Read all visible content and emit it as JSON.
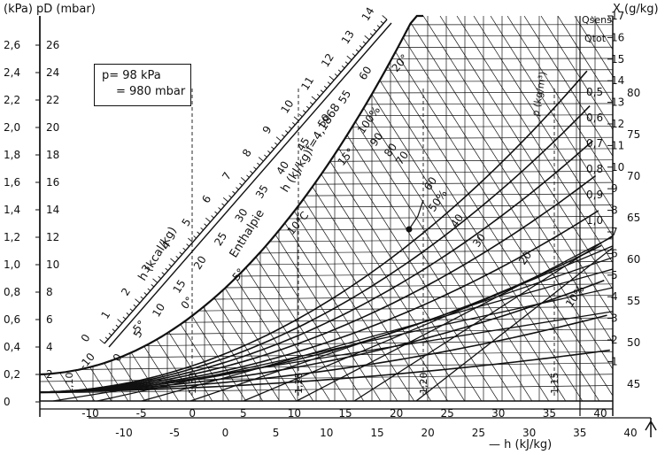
{
  "diagram": {
    "type": "Mollier h-x diagram (psychrometric chart)",
    "pressure_box": {
      "line1": "p=   98 kPa",
      "line2": "= 980 mbar"
    },
    "left_axis_title": "(kPa) pD (mbar)",
    "left_kpa_ticks": [
      "2,6",
      "2,4",
      "2,2",
      "2,0",
      "1,8",
      "1,6",
      "1,4",
      "1,2",
      "1,0",
      "0,8",
      "0,6",
      "0,4",
      "0,2",
      "0"
    ],
    "left_mbar_ticks": [
      "26",
      "24",
      "22",
      "20",
      "18",
      "16",
      "14",
      "12",
      "10",
      "8",
      "6",
      "4",
      "2"
    ],
    "right_axis_title": "X (g/kg)",
    "right_x_ticks": [
      "17",
      "16",
      "15",
      "14",
      "13",
      "12",
      "11",
      "10",
      "9",
      "8",
      "7",
      "6",
      "5",
      "4",
      "3",
      "2",
      "1"
    ],
    "right_enthalpy_ticks": [
      "80",
      "75",
      "70",
      "65",
      "60",
      "55",
      "50",
      "45"
    ],
    "q_labels": {
      "sens": "Qsens",
      "tot": "Qtot"
    },
    "q_ratio_ticks": [
      "0,5",
      "0,6",
      "0,7",
      "0,8",
      "0,9",
      "1,0"
    ],
    "bottom_h_ticks_top": [
      "-10",
      "-5",
      "0",
      "5",
      "10",
      "15",
      "20",
      "25",
      "30",
      "35",
      "40"
    ],
    "bottom_h_ticks_bottom": [
      "-10",
      "-5",
      "0",
      "5",
      "10",
      "15",
      "20",
      "25",
      "30",
      "35",
      "40"
    ],
    "bottom_axis_label": "— h (kJ/kg)",
    "temperature_labels": [
      "-10",
      "-5°",
      "0°",
      "5°",
      "10°C",
      "15°",
      "20°"
    ],
    "rh_labels": [
      "100%",
      "90",
      "80",
      "70",
      "60",
      "50%",
      "40",
      "30",
      "20",
      "10%"
    ],
    "scale_kcal_ticks": [
      "0",
      "1",
      "2",
      "3",
      "4",
      "5",
      "6",
      "7",
      "8",
      "9",
      "10",
      "11",
      "12",
      "13",
      "14"
    ],
    "scale_kj_ticks": [
      "0",
      "5",
      "10",
      "15",
      "20",
      "25",
      "30",
      "35",
      "40",
      "45",
      "50",
      "55",
      "60"
    ],
    "scale_labels": {
      "kcal": "h (kcal/kg)",
      "enthalpie": "Enthalpie",
      "kj": "h (kJ/kg)",
      "factor": "f=4,1868"
    },
    "vert_labels": [
      "1,30",
      "1,25",
      "1,20",
      "1,15",
      "1,10"
    ],
    "density_label": "ρ (kg/m³)"
  }
}
